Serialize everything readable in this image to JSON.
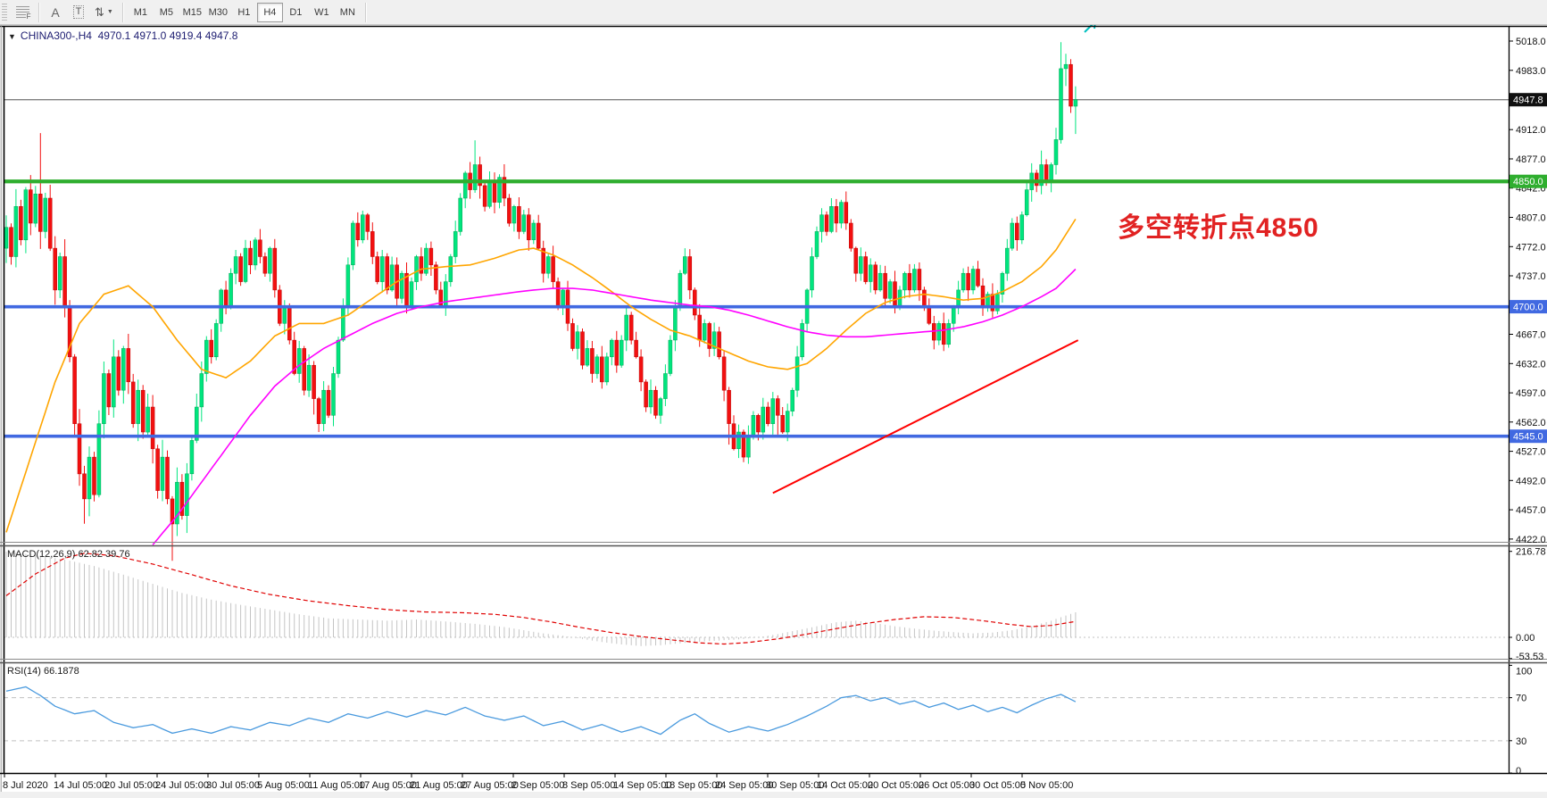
{
  "toolbar": {
    "grid_icon_label": "F",
    "a_label": "A",
    "t_label": "T",
    "arrows_icon": "⇅",
    "dropdown_icon": "▼",
    "timeframes": [
      "M1",
      "M5",
      "M15",
      "M30",
      "H1",
      "H4",
      "D1",
      "W1",
      "MN"
    ],
    "active_timeframe": "H4"
  },
  "title": {
    "dropdown_icon": "▼",
    "text": "CHINA300-,H4  4970.1 4971.0 4919.4 4947.8"
  },
  "annotation": {
    "text": "多空转折点4850",
    "color": "#e12222"
  },
  "macd": {
    "label": "MACD(12,26,9) 62.82 39.76",
    "scale_labels": [
      {
        "label": "216.78",
        "v": 216.78
      },
      {
        "label": "0.00",
        "v": 0
      },
      {
        "label": "-53.53",
        "v": -53.53
      }
    ]
  },
  "rsi": {
    "label": "RSI(14) 66.1878",
    "scale_labels": [
      {
        "label": "100",
        "v": 100
      },
      {
        "label": "70",
        "v": 70
      },
      {
        "label": "30",
        "v": 30
      },
      {
        "label": "0",
        "v": 0
      }
    ],
    "dashed_levels": [
      70,
      30
    ]
  },
  "price_axis": {
    "ticks": [
      [
        "5018.0",
        5018
      ],
      [
        "4983.0",
        4983
      ],
      [
        "4912.0",
        4912
      ],
      [
        "4877.0",
        4877
      ],
      [
        "4842.0",
        4842
      ],
      [
        "4807.0",
        4807
      ],
      [
        "4772.0",
        4772
      ],
      [
        "4737.0",
        4737
      ],
      [
        "4667.0",
        4667
      ],
      [
        "4632.0",
        4632
      ],
      [
        "4597.0",
        4597
      ],
      [
        "4562.0",
        4562
      ],
      [
        "4527.0",
        4527
      ],
      [
        "4492.0",
        4492
      ],
      [
        "4457.0",
        4457
      ],
      [
        "4422.0",
        4422
      ]
    ],
    "badges": [
      {
        "label": "4947.8",
        "price": 4947.8,
        "bg": "#101010",
        "type": "current-price"
      },
      {
        "label": "4850.0",
        "price": 4850,
        "bg": "#2fae2f",
        "type": "hline"
      },
      {
        "label": "4700.0",
        "price": 4700,
        "bg": "#4169e1",
        "type": "hline"
      },
      {
        "label": "4545.0",
        "price": 4545,
        "bg": "#4169e1",
        "type": "hline"
      }
    ]
  },
  "time_axis": {
    "labels": [
      "8 Jul 2020",
      "14 Jul 05:00",
      "20 Jul 05:00",
      "24 Jul 05:00",
      "30 Jul 05:00",
      "5 Aug 05:00",
      "11 Aug 05:00",
      "17 Aug 05:00",
      "21 Aug 05:00",
      "27 Aug 05:00",
      "2 Sep 05:00",
      "8 Sep 05:00",
      "14 Sep 05:00",
      "18 Sep 05:00",
      "24 Sep 05:00",
      "30 Sep 05:00",
      "14 Oct 05:00",
      "20 Oct 05:00",
      "26 Oct 05:00",
      "30 Oct 05:00",
      "5 Nov 05:00"
    ]
  },
  "chart_data": {
    "type": "candlestick",
    "symbol": "CHINA300-",
    "timeframe": "H4",
    "ohlc_quote": {
      "open": 4970.1,
      "high": 4971.0,
      "low": 4919.4,
      "close": 4947.8
    },
    "colors": {
      "bull": "#00e57e",
      "bull_border": "#00a554",
      "bear": "#f21010",
      "bear_border": "#bd0000",
      "hline_green": "#2fae2f",
      "hline_blue": "#4169e1",
      "current_line": "#808080",
      "ma_fast": "#ffa500",
      "ma_slow": "#ff00ff",
      "trendline": "#ff0000",
      "macd_hist": "#c4c4c4",
      "macd_signal": "#e00000",
      "rsi_line": "#4a9ade",
      "dashed_gray": "#c0c0c0"
    },
    "hlines": [
      {
        "price": 4850,
        "color": "#2fae2f",
        "width": 4.2
      },
      {
        "price": 4700,
        "color": "#4169e1",
        "width": 3.6
      },
      {
        "price": 4545,
        "color": "#4169e1",
        "width": 3.6
      }
    ],
    "current_price": 4947.8,
    "open_first": 4770,
    "closes": [
      4795,
      4760,
      4820,
      4780,
      4840,
      4800,
      4835,
      4790,
      4830,
      4770,
      4720,
      4760,
      4700,
      4640,
      4560,
      4500,
      4470,
      4520,
      4475,
      4560,
      4620,
      4580,
      4640,
      4600,
      4650,
      4610,
      4560,
      4600,
      4550,
      4580,
      4530,
      4480,
      4520,
      4470,
      4440,
      4490,
      4450,
      4500,
      4540,
      4580,
      4620,
      4660,
      4640,
      4680,
      4720,
      4700,
      4740,
      4760,
      4730,
      4770,
      4750,
      4780,
      4760,
      4740,
      4770,
      4720,
      4680,
      4700,
      4660,
      4620,
      4650,
      4600,
      4630,
      4590,
      4560,
      4600,
      4570,
      4620,
      4660,
      4700,
      4750,
      4800,
      4780,
      4810,
      4790,
      4760,
      4730,
      4760,
      4720,
      4750,
      4710,
      4740,
      4700,
      4730,
      4760,
      4740,
      4770,
      4750,
      4720,
      4700,
      4730,
      4760,
      4790,
      4830,
      4860,
      4840,
      4870,
      4845,
      4820,
      4850,
      4825,
      4855,
      4830,
      4800,
      4820,
      4790,
      4810,
      4780,
      4800,
      4770,
      4740,
      4760,
      4730,
      4700,
      4720,
      4680,
      4650,
      4670,
      4630,
      4650,
      4620,
      4640,
      4610,
      4640,
      4660,
      4630,
      4660,
      4690,
      4660,
      4640,
      4610,
      4580,
      4600,
      4570,
      4590,
      4620,
      4660,
      4700,
      4740,
      4760,
      4720,
      4690,
      4660,
      4680,
      4650,
      4670,
      4640,
      4600,
      4560,
      4530,
      4550,
      4520,
      4545,
      4570,
      4550,
      4580,
      4560,
      4590,
      4570,
      4550,
      4575,
      4600,
      4640,
      4680,
      4720,
      4760,
      4790,
      4810,
      4790,
      4820,
      4800,
      4825,
      4800,
      4770,
      4740,
      4760,
      4730,
      4750,
      4720,
      4740,
      4710,
      4730,
      4700,
      4720,
      4740,
      4720,
      4745,
      4720,
      4700,
      4680,
      4660,
      4680,
      4655,
      4680,
      4700,
      4720,
      4740,
      4720,
      4745,
      4725,
      4700,
      4715,
      4695,
      4715,
      4740,
      4770,
      4800,
      4780,
      4810,
      4840,
      4860,
      4845,
      4870,
      4850,
      4870,
      4900,
      4985,
      4990,
      4940,
      4947.8
    ],
    "wick_pattern": [
      9,
      3,
      13,
      5,
      2,
      11,
      6,
      8,
      4,
      10
    ],
    "wick_extra": {
      "7": [
        60,
        0
      ],
      "16": [
        0,
        25
      ],
      "34": [
        0,
        28
      ],
      "63": [
        0,
        15
      ],
      "96": [
        22,
        0
      ],
      "148": [
        0,
        20
      ],
      "158": [
        0,
        18
      ],
      "216": [
        22,
        0
      ],
      "219": [
        0,
        30
      ]
    },
    "vol_segments": [
      [
        0,
        1.6
      ],
      [
        42,
        1.0
      ],
      [
        93,
        1.2
      ],
      [
        103,
        1.0
      ],
      [
        210,
        1.3
      ],
      [
        216,
        1.6
      ]
    ],
    "ma_fast_waypoints": [
      [
        0,
        4430
      ],
      [
        5,
        4520
      ],
      [
        10,
        4610
      ],
      [
        15,
        4680
      ],
      [
        20,
        4715
      ],
      [
        25,
        4725
      ],
      [
        30,
        4700
      ],
      [
        35,
        4660
      ],
      [
        40,
        4625
      ],
      [
        45,
        4615
      ],
      [
        50,
        4635
      ],
      [
        55,
        4665
      ],
      [
        60,
        4680
      ],
      [
        65,
        4680
      ],
      [
        70,
        4690
      ],
      [
        75,
        4710
      ],
      [
        80,
        4730
      ],
      [
        85,
        4745
      ],
      [
        90,
        4748
      ],
      [
        95,
        4750
      ],
      [
        100,
        4758
      ],
      [
        105,
        4768
      ],
      [
        108,
        4770
      ],
      [
        112,
        4762
      ],
      [
        116,
        4750
      ],
      [
        120,
        4735
      ],
      [
        124,
        4718
      ],
      [
        128,
        4700
      ],
      [
        132,
        4685
      ],
      [
        136,
        4672
      ],
      [
        140,
        4665
      ],
      [
        144,
        4655
      ],
      [
        148,
        4645
      ],
      [
        152,
        4635
      ],
      [
        156,
        4628
      ],
      [
        160,
        4625
      ],
      [
        164,
        4632
      ],
      [
        168,
        4650
      ],
      [
        172,
        4672
      ],
      [
        176,
        4692
      ],
      [
        180,
        4705
      ],
      [
        184,
        4712
      ],
      [
        188,
        4715
      ],
      [
        192,
        4712
      ],
      [
        196,
        4708
      ],
      [
        200,
        4710
      ],
      [
        204,
        4718
      ],
      [
        208,
        4730
      ],
      [
        212,
        4748
      ],
      [
        215,
        4768
      ],
      [
        219,
        4805
      ]
    ],
    "ma_slow_start": 30,
    "ma_slow_waypoints": [
      [
        30,
        4415
      ],
      [
        35,
        4450
      ],
      [
        40,
        4490
      ],
      [
        45,
        4530
      ],
      [
        50,
        4570
      ],
      [
        55,
        4605
      ],
      [
        60,
        4630
      ],
      [
        65,
        4650
      ],
      [
        70,
        4665
      ],
      [
        75,
        4680
      ],
      [
        80,
        4692
      ],
      [
        85,
        4700
      ],
      [
        90,
        4706
      ],
      [
        95,
        4710
      ],
      [
        100,
        4714
      ],
      [
        105,
        4718
      ],
      [
        108,
        4720
      ],
      [
        112,
        4722
      ],
      [
        116,
        4722
      ],
      [
        120,
        4720
      ],
      [
        124,
        4716
      ],
      [
        128,
        4712
      ],
      [
        132,
        4708
      ],
      [
        136,
        4705
      ],
      [
        140,
        4702
      ],
      [
        144,
        4700
      ],
      [
        148,
        4696
      ],
      [
        152,
        4690
      ],
      [
        156,
        4683
      ],
      [
        160,
        4676
      ],
      [
        164,
        4670
      ],
      [
        168,
        4666
      ],
      [
        172,
        4664
      ],
      [
        176,
        4664
      ],
      [
        180,
        4666
      ],
      [
        184,
        4668
      ],
      [
        188,
        4670
      ],
      [
        192,
        4672
      ],
      [
        196,
        4676
      ],
      [
        200,
        4682
      ],
      [
        204,
        4690
      ],
      [
        208,
        4700
      ],
      [
        212,
        4712
      ],
      [
        215,
        4722
      ],
      [
        219,
        4745
      ]
    ],
    "trendline": {
      "i1": 157,
      "p1": 4477,
      "i2": 219.5,
      "p2": 4660
    },
    "macd_hist_waypoints": [
      [
        0,
        216
      ],
      [
        6,
        208
      ],
      [
        12,
        196
      ],
      [
        18,
        180
      ],
      [
        24,
        158
      ],
      [
        30,
        135
      ],
      [
        36,
        112
      ],
      [
        42,
        95
      ],
      [
        48,
        82
      ],
      [
        54,
        70
      ],
      [
        60,
        58
      ],
      [
        66,
        48
      ],
      [
        72,
        45
      ],
      [
        78,
        42
      ],
      [
        84,
        45
      ],
      [
        90,
        40
      ],
      [
        96,
        34
      ],
      [
        102,
        26
      ],
      [
        106,
        18
      ],
      [
        110,
        10
      ],
      [
        114,
        4
      ],
      [
        118,
        -4
      ],
      [
        122,
        -12
      ],
      [
        126,
        -18
      ],
      [
        130,
        -22
      ],
      [
        134,
        -20
      ],
      [
        138,
        -15
      ],
      [
        142,
        -11
      ],
      [
        146,
        -8
      ],
      [
        150,
        -5
      ],
      [
        154,
        0
      ],
      [
        158,
        8
      ],
      [
        162,
        18
      ],
      [
        166,
        28
      ],
      [
        170,
        38
      ],
      [
        174,
        42
      ],
      [
        178,
        36
      ],
      [
        182,
        28
      ],
      [
        186,
        22
      ],
      [
        190,
        17
      ],
      [
        194,
        13
      ],
      [
        198,
        10
      ],
      [
        202,
        12
      ],
      [
        206,
        18
      ],
      [
        210,
        28
      ],
      [
        214,
        42
      ],
      [
        217,
        55
      ],
      [
        219,
        63
      ]
    ],
    "macd_signal_waypoints": [
      [
        0,
        105
      ],
      [
        6,
        160
      ],
      [
        12,
        200
      ],
      [
        16,
        212
      ],
      [
        22,
        206
      ],
      [
        30,
        185
      ],
      [
        38,
        158
      ],
      [
        46,
        130
      ],
      [
        54,
        108
      ],
      [
        62,
        92
      ],
      [
        70,
        80
      ],
      [
        78,
        70
      ],
      [
        86,
        64
      ],
      [
        94,
        62
      ],
      [
        100,
        58
      ],
      [
        106,
        50
      ],
      [
        112,
        38
      ],
      [
        118,
        24
      ],
      [
        124,
        12
      ],
      [
        130,
        2
      ],
      [
        136,
        -6
      ],
      [
        142,
        -14
      ],
      [
        147,
        -17
      ],
      [
        152,
        -13
      ],
      [
        158,
        -4
      ],
      [
        164,
        8
      ],
      [
        170,
        22
      ],
      [
        176,
        35
      ],
      [
        182,
        45
      ],
      [
        188,
        52
      ],
      [
        194,
        50
      ],
      [
        200,
        42
      ],
      [
        206,
        32
      ],
      [
        210,
        27
      ],
      [
        214,
        30
      ],
      [
        219,
        40
      ]
    ],
    "rsi_waypoints": [
      [
        0,
        76
      ],
      [
        4,
        80
      ],
      [
        7,
        72
      ],
      [
        10,
        62
      ],
      [
        14,
        55
      ],
      [
        18,
        58
      ],
      [
        22,
        47
      ],
      [
        26,
        42
      ],
      [
        30,
        45
      ],
      [
        34,
        37
      ],
      [
        38,
        41
      ],
      [
        42,
        37
      ],
      [
        46,
        43
      ],
      [
        50,
        40
      ],
      [
        54,
        47
      ],
      [
        58,
        44
      ],
      [
        62,
        51
      ],
      [
        66,
        47
      ],
      [
        70,
        55
      ],
      [
        74,
        51
      ],
      [
        78,
        57
      ],
      [
        82,
        52
      ],
      [
        86,
        58
      ],
      [
        90,
        54
      ],
      [
        94,
        61
      ],
      [
        98,
        53
      ],
      [
        102,
        49
      ],
      [
        106,
        53
      ],
      [
        110,
        44
      ],
      [
        114,
        48
      ],
      [
        118,
        40
      ],
      [
        122,
        45
      ],
      [
        126,
        38
      ],
      [
        130,
        43
      ],
      [
        134,
        36
      ],
      [
        138,
        49
      ],
      [
        141,
        55
      ],
      [
        144,
        46
      ],
      [
        148,
        38
      ],
      [
        152,
        43
      ],
      [
        156,
        39
      ],
      [
        160,
        45
      ],
      [
        164,
        53
      ],
      [
        168,
        62
      ],
      [
        171,
        70
      ],
      [
        174,
        72
      ],
      [
        177,
        67
      ],
      [
        180,
        70
      ],
      [
        183,
        64
      ],
      [
        186,
        67
      ],
      [
        189,
        61
      ],
      [
        192,
        65
      ],
      [
        195,
        59
      ],
      [
        198,
        63
      ],
      [
        201,
        57
      ],
      [
        204,
        61
      ],
      [
        207,
        56
      ],
      [
        210,
        63
      ],
      [
        213,
        69
      ],
      [
        216,
        73
      ],
      [
        219,
        66.19
      ]
    ]
  }
}
